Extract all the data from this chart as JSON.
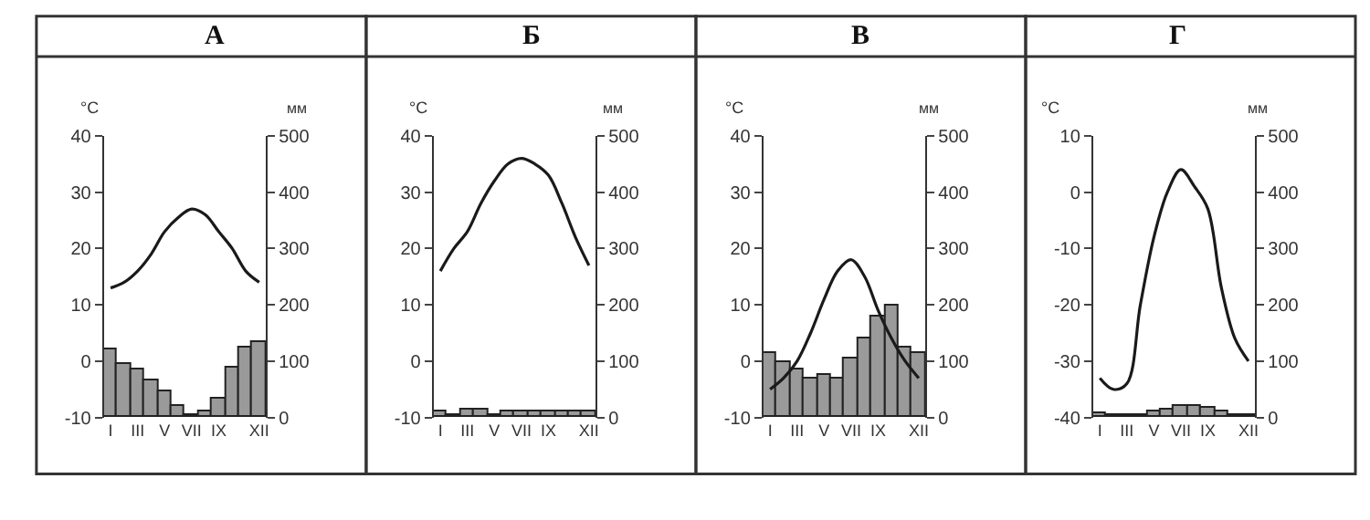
{
  "chart_data": [
    {
      "type": "bar",
      "title": "А",
      "ylabel": "°C",
      "y2label": "мм",
      "categories": [
        "I",
        null,
        "III",
        null,
        "V",
        null,
        "VII",
        null,
        "IX",
        null,
        null,
        "XII"
      ],
      "ylim": [
        -10,
        40
      ],
      "yticks": [
        -10,
        0,
        10,
        20,
        30,
        40
      ],
      "y2lim": [
        0,
        500
      ],
      "y2ticks": [
        0,
        100,
        200,
        300,
        400,
        500
      ],
      "series": [
        {
          "axis": "y2",
          "color": "#9a9a9a",
          "values": [
            120,
            95,
            85,
            65,
            45,
            20,
            5,
            10,
            35,
            90,
            125,
            135
          ]
        },
        {
          "type": "line",
          "axis": "y",
          "color": "#1a1a1a",
          "values": [
            13,
            14,
            16,
            19,
            23,
            25.5,
            27,
            26,
            23,
            20,
            16,
            14
          ]
        }
      ]
    },
    {
      "type": "bar",
      "title": "Б",
      "ylabel": "°C",
      "y2label": "мм",
      "categories": [
        "I",
        null,
        "III",
        null,
        "V",
        null,
        "VII",
        null,
        "IX",
        null,
        null,
        "XII"
      ],
      "ylim": [
        -10,
        40
      ],
      "yticks": [
        -10,
        0,
        10,
        20,
        30,
        40
      ],
      "y2lim": [
        0,
        500
      ],
      "y2ticks": [
        0,
        100,
        200,
        300,
        400,
        500
      ],
      "series": [
        {
          "axis": "y2",
          "color": "#9a9a9a",
          "values": [
            12,
            5,
            15,
            15,
            5,
            10,
            10,
            10,
            10,
            10,
            10,
            10
          ]
        },
        {
          "type": "line",
          "axis": "y",
          "color": "#1a1a1a",
          "values": [
            16,
            20,
            23,
            28,
            32,
            35,
            36,
            35,
            33,
            28,
            22,
            17
          ]
        }
      ]
    },
    {
      "type": "bar",
      "title": "В",
      "ylabel": "°C",
      "y2label": "мм",
      "categories": [
        "I",
        null,
        "III",
        null,
        "V",
        null,
        "VII",
        null,
        "IX",
        null,
        null,
        "XII"
      ],
      "ylim": [
        -10,
        40
      ],
      "yticks": [
        -10,
        0,
        10,
        20,
        30,
        40
      ],
      "y2lim": [
        0,
        500
      ],
      "y2ticks": [
        0,
        100,
        200,
        300,
        400,
        500
      ],
      "series": [
        {
          "axis": "y2",
          "color": "#9a9a9a",
          "values": [
            115,
            100,
            85,
            70,
            75,
            70,
            105,
            140,
            180,
            200,
            125,
            115
          ]
        },
        {
          "type": "line",
          "axis": "y",
          "color": "#1a1a1a",
          "values": [
            -5,
            -3,
            0,
            5,
            11,
            16,
            18,
            15,
            9,
            4,
            0,
            -3
          ]
        }
      ]
    },
    {
      "type": "bar",
      "title": "Г",
      "ylabel": "°C",
      "y2label": "мм",
      "categories": [
        "I",
        null,
        "III",
        null,
        "V",
        null,
        "VII",
        null,
        "IX",
        null,
        null,
        "XII"
      ],
      "ylim": [
        -40,
        10
      ],
      "yticks": [
        -40,
        -30,
        -20,
        -10,
        0,
        10
      ],
      "y2lim": [
        0,
        500
      ],
      "y2ticks": [
        0,
        100,
        200,
        300,
        400,
        500
      ],
      "series": [
        {
          "axis": "y2",
          "color": "#9a9a9a",
          "values": [
            8,
            3,
            3,
            5,
            10,
            15,
            22,
            22,
            18,
            10,
            5,
            3
          ]
        },
        {
          "type": "line",
          "axis": "y",
          "color": "#1a1a1a",
          "values": [
            -33,
            -35,
            -34,
            -20,
            -8,
            0,
            4,
            1,
            -3,
            -17,
            -26,
            -30
          ]
        }
      ]
    }
  ]
}
